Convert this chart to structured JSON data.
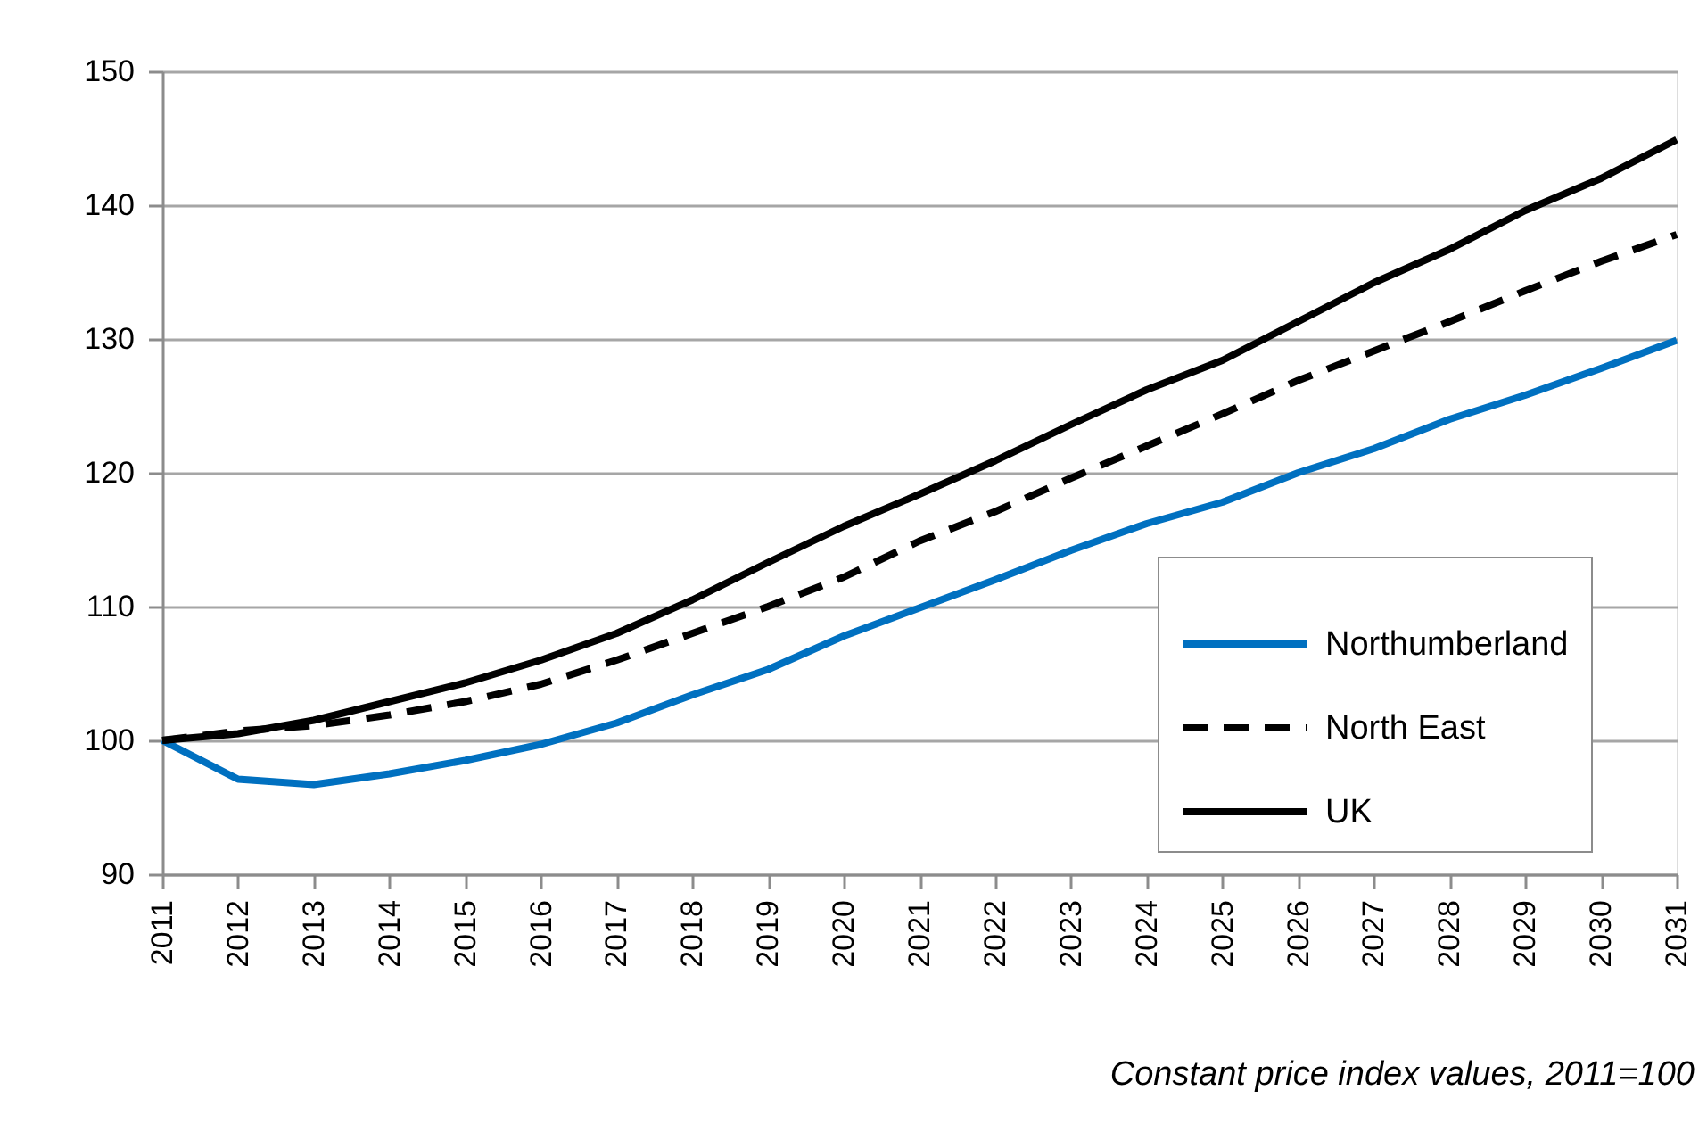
{
  "chart_data": {
    "type": "line",
    "categories": [
      "2011",
      "2012",
      "2013",
      "2014",
      "2015",
      "2016",
      "2017",
      "2018",
      "2019",
      "2020",
      "2021",
      "2022",
      "2023",
      "2024",
      "2025",
      "2026",
      "2027",
      "2028",
      "2029",
      "2030",
      "2031"
    ],
    "series": [
      {
        "name": "Northumberland",
        "color": "#0070c0",
        "line_style": "solid",
        "values": [
          100,
          97.1,
          96.7,
          97.5,
          98.5,
          99.7,
          101.3,
          103.4,
          105.3,
          107.8,
          109.9,
          112.0,
          114.2,
          116.2,
          117.8,
          120.0,
          121.8,
          124.0,
          125.8,
          127.8,
          129.9
        ]
      },
      {
        "name": "North East",
        "color": "#000000",
        "line_style": "dashed",
        "values": [
          100,
          100.7,
          101.1,
          101.9,
          102.9,
          104.2,
          106.0,
          108.0,
          110.0,
          112.2,
          114.9,
          117.1,
          119.6,
          122.0,
          124.4,
          126.9,
          129.1,
          131.3,
          133.6,
          135.8,
          137.8
        ]
      },
      {
        "name": "UK",
        "color": "#000000",
        "line_style": "solid",
        "values": [
          100,
          100.5,
          101.5,
          102.9,
          104.3,
          106.0,
          108.0,
          110.5,
          113.3,
          116.0,
          118.4,
          120.9,
          123.6,
          126.2,
          128.4,
          131.3,
          134.2,
          136.7,
          139.6,
          142.0,
          144.9
        ]
      }
    ],
    "ylim": [
      90,
      150
    ],
    "yticks": [
      90,
      100,
      110,
      120,
      130,
      140,
      150
    ],
    "grid": "y",
    "legend": "bottom right",
    "annotations": [
      "Constant price index values, 2011=100"
    ]
  }
}
